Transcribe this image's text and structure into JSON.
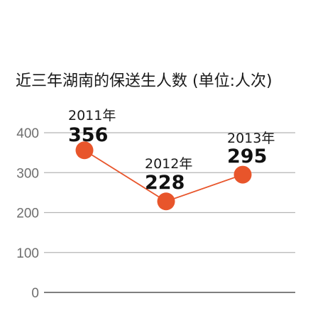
{
  "colors": {
    "line": "#e8552b",
    "marker": "#e8552b",
    "grid": "#b4b4b4",
    "axis": "#555555",
    "tick_text": "#6e6e6e"
  },
  "chart_data": {
    "type": "line",
    "title": "近三年湖南的保送生人数 (单位:人次)",
    "xlabel": "",
    "ylabel": "",
    "ylim": [
      0,
      400
    ],
    "yticks": [
      0,
      100,
      200,
      300,
      400
    ],
    "grid": true,
    "legend": "none",
    "x": [
      "2011年",
      "2012年",
      "2013年"
    ],
    "series": [
      {
        "values": [
          356,
          228,
          295
        ],
        "labels": [
          "356",
          "228",
          "295"
        ]
      }
    ]
  }
}
